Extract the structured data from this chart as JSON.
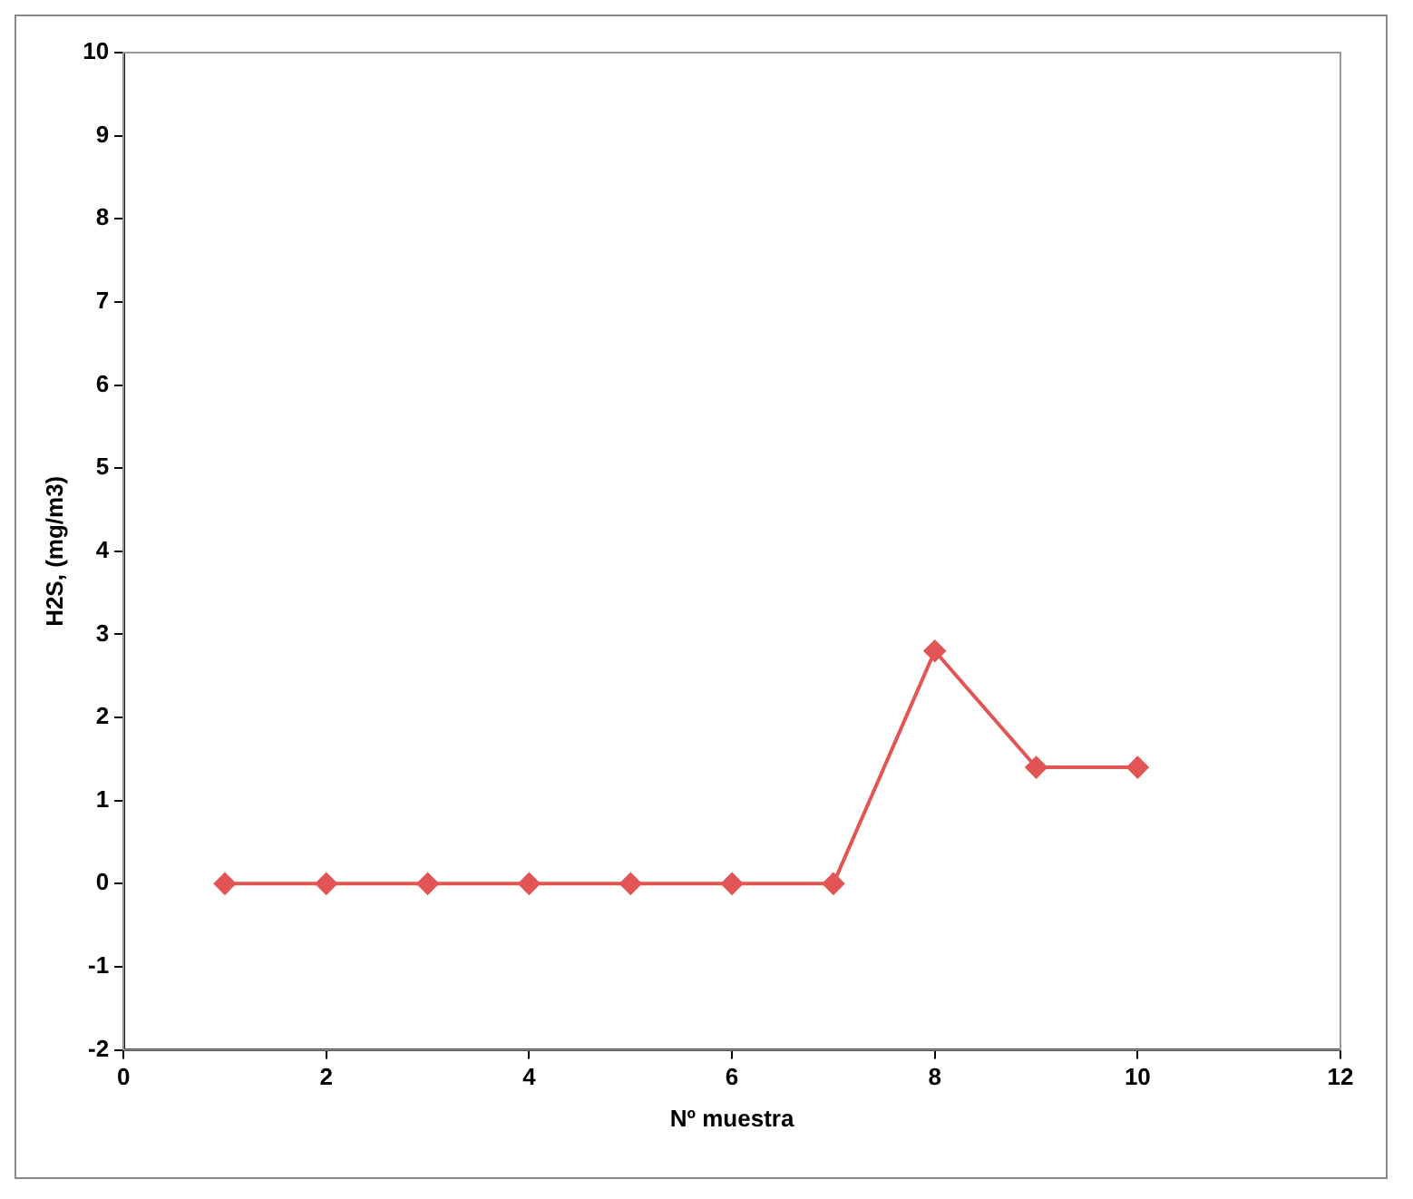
{
  "chart_data": {
    "type": "line",
    "xlabel": "Nº muestra",
    "ylabel": "H2S, (mg/m3)",
    "x": [
      1,
      2,
      3,
      4,
      5,
      6,
      7,
      8,
      9,
      10
    ],
    "series": [
      {
        "color": "#e25555",
        "values": [
          0,
          0,
          0,
          0,
          0,
          0,
          0,
          2.8,
          1.4,
          1.4
        ]
      }
    ],
    "xlim": [
      0,
      12
    ],
    "xticks": [
      0,
      2,
      4,
      6,
      8,
      10,
      12
    ],
    "ylim": [
      -2,
      10
    ],
    "yticks": [
      -2,
      -1,
      0,
      1,
      2,
      3,
      4,
      5,
      6,
      7,
      8,
      9,
      10
    ],
    "grid": false,
    "legend": false,
    "marker": "diamond",
    "line_style": "solid"
  }
}
